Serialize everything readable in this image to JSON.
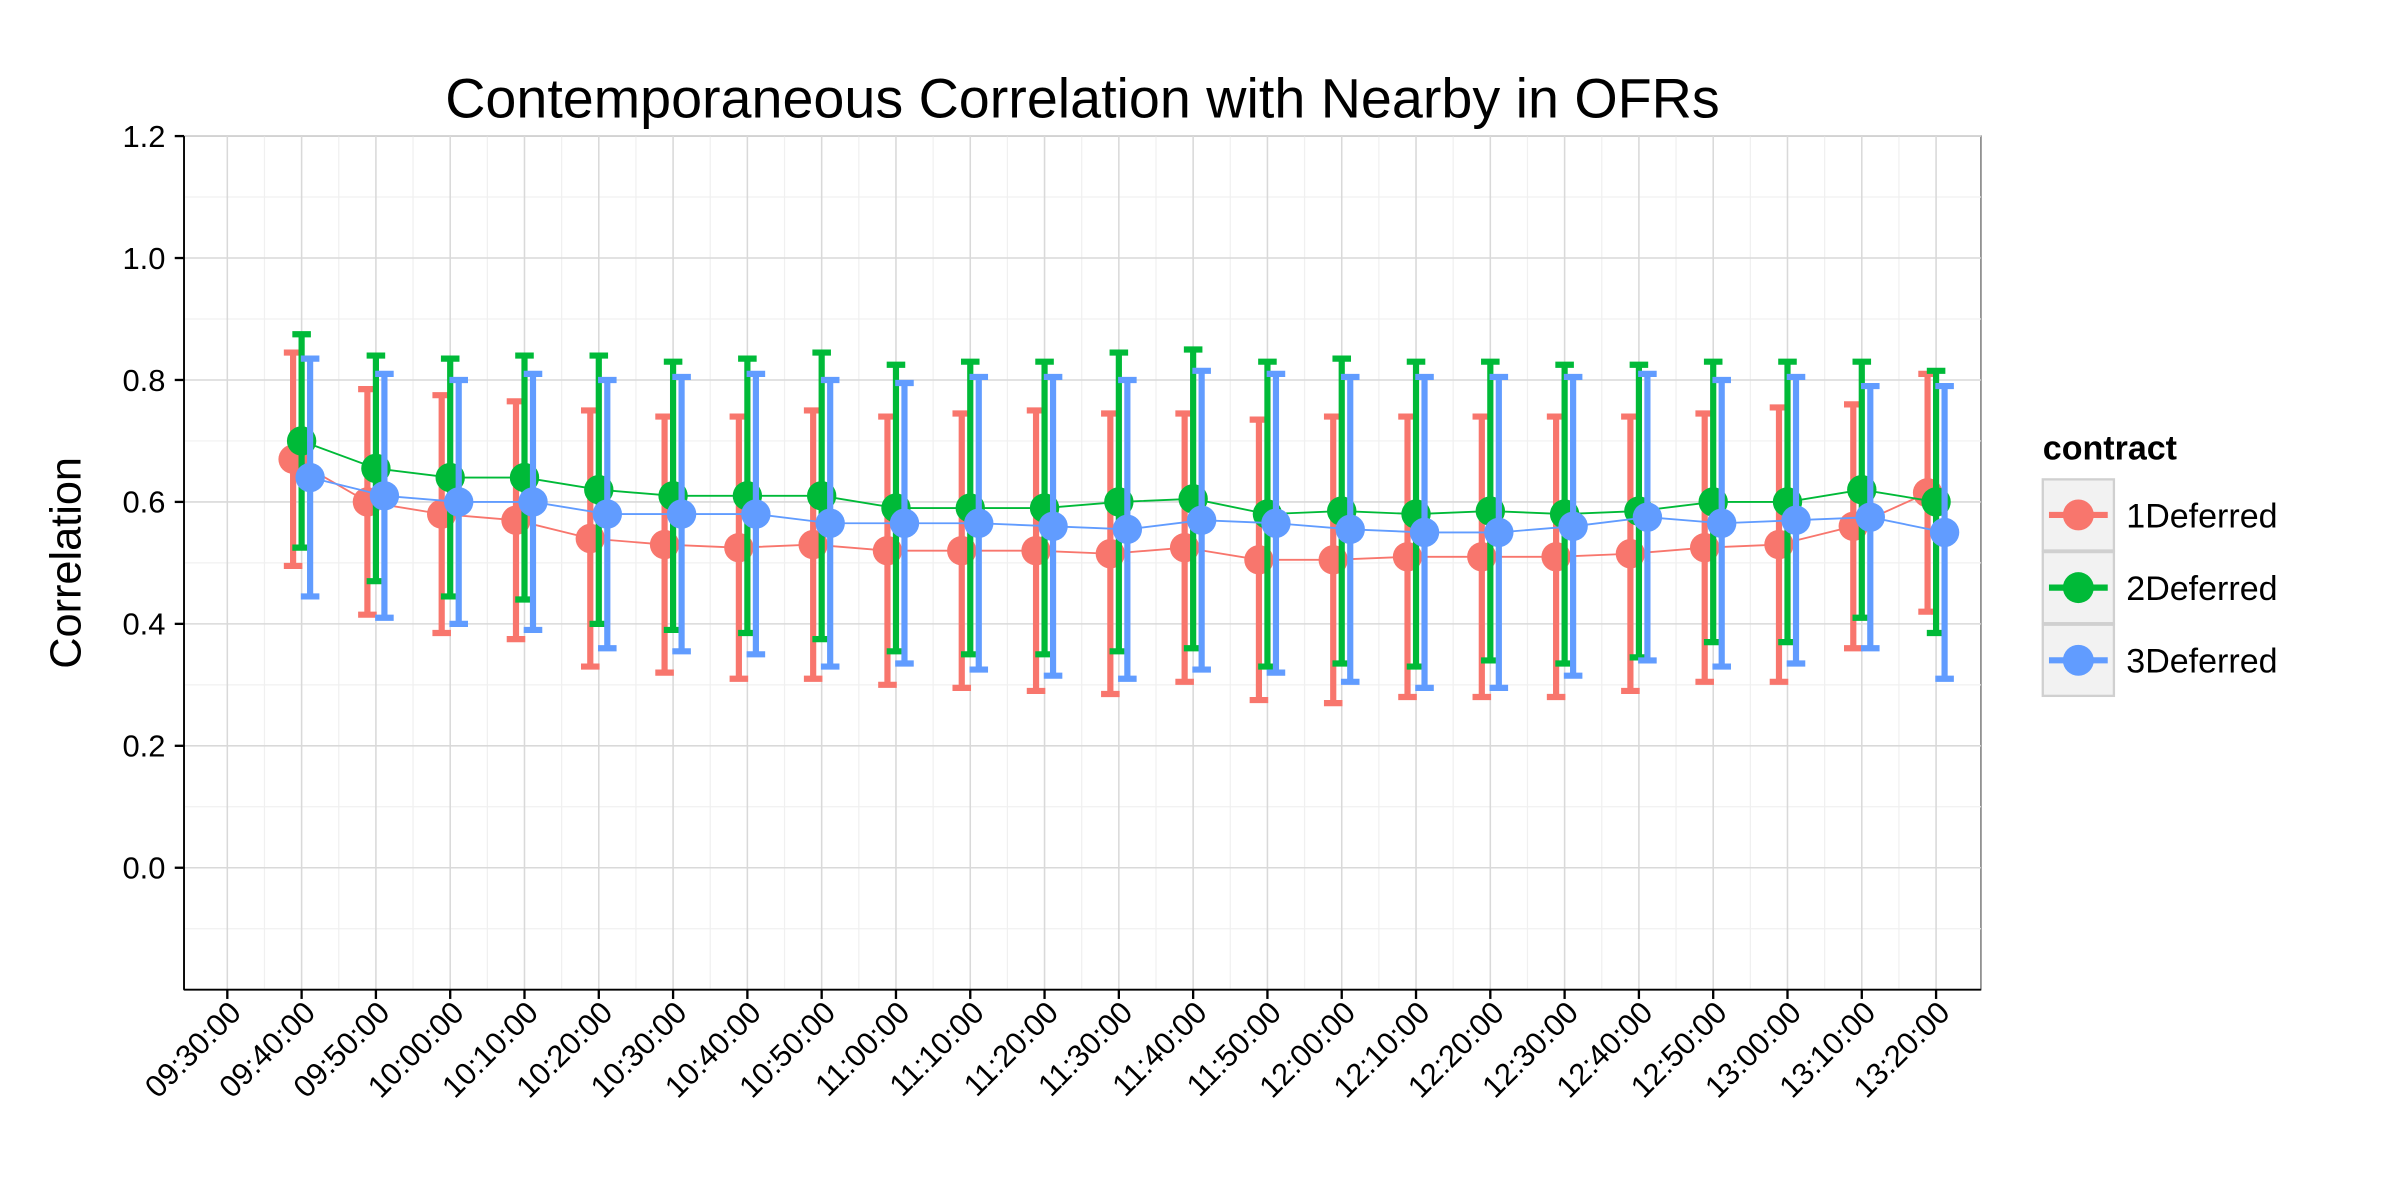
{
  "chart_data": {
    "type": "line",
    "title": "Contemporaneous Correlation with Nearby in OFRs",
    "y_label": "Correlation",
    "legend_title": "contract",
    "legend": "right",
    "grid": true,
    "categories": [
      "09:30:00",
      "09:40:00",
      "09:50:00",
      "10:00:00",
      "10:10:00",
      "10:20:00",
      "10:30:00",
      "10:40:00",
      "10:50:00",
      "11:00:00",
      "11:10:00",
      "11:20:00",
      "11:30:00",
      "11:40:00",
      "11:50:00",
      "12:00:00",
      "12:10:00",
      "12:20:00",
      "12:30:00",
      "12:40:00",
      "12:50:00",
      "13:00:00",
      "13:10:00",
      "13:20:00"
    ],
    "ylim": [
      -0.2,
      1.2
    ],
    "yticks": [
      {
        "value": 0,
        "label": "0.0"
      },
      0.2,
      0.4,
      0.6,
      0.8,
      {
        "value": 1,
        "label": "1.0"
      },
      1.2
    ],
    "series": [
      {
        "name": "1Deferred",
        "color": "#f8766d",
        "values": [
          null,
          0.67,
          0.6,
          0.58,
          0.57,
          0.54,
          0.53,
          0.525,
          0.53,
          0.52,
          0.52,
          0.52,
          0.515,
          0.525,
          0.505,
          0.505,
          0.51,
          0.51,
          0.51,
          0.515,
          0.525,
          0.53,
          0.56,
          0.615
        ],
        "errors": [
          null,
          0.175,
          0.185,
          0.195,
          0.195,
          0.21,
          0.21,
          0.215,
          0.22,
          0.22,
          0.225,
          0.23,
          0.23,
          0.22,
          0.23,
          0.235,
          0.23,
          0.23,
          0.23,
          0.225,
          0.22,
          0.225,
          0.2,
          0.195
        ]
      },
      {
        "name": "2Deferred",
        "color": "#00ba38",
        "values": [
          null,
          0.7,
          0.655,
          0.64,
          0.64,
          0.62,
          0.61,
          0.61,
          0.61,
          0.59,
          0.59,
          0.59,
          0.6,
          0.605,
          0.58,
          0.585,
          0.58,
          0.585,
          0.58,
          0.585,
          0.6,
          0.6,
          0.62,
          0.6
        ],
        "errors": [
          null,
          0.175,
          0.185,
          0.195,
          0.2,
          0.22,
          0.22,
          0.225,
          0.235,
          0.235,
          0.24,
          0.24,
          0.245,
          0.245,
          0.25,
          0.25,
          0.25,
          0.245,
          0.245,
          0.24,
          0.23,
          0.23,
          0.21,
          0.215
        ]
      },
      {
        "name": "3Deferred",
        "color": "#619cff",
        "values": [
          null,
          0.64,
          0.61,
          0.6,
          0.6,
          0.58,
          0.58,
          0.58,
          0.565,
          0.565,
          0.565,
          0.56,
          0.555,
          0.57,
          0.565,
          0.555,
          0.55,
          0.55,
          0.56,
          0.575,
          0.565,
          0.57,
          0.575,
          0.55
        ],
        "errors": [
          null,
          0.195,
          0.2,
          0.2,
          0.21,
          0.22,
          0.225,
          0.23,
          0.235,
          0.23,
          0.24,
          0.245,
          0.245,
          0.245,
          0.245,
          0.25,
          0.255,
          0.255,
          0.245,
          0.235,
          0.235,
          0.235,
          0.215,
          0.24
        ]
      }
    ]
  }
}
